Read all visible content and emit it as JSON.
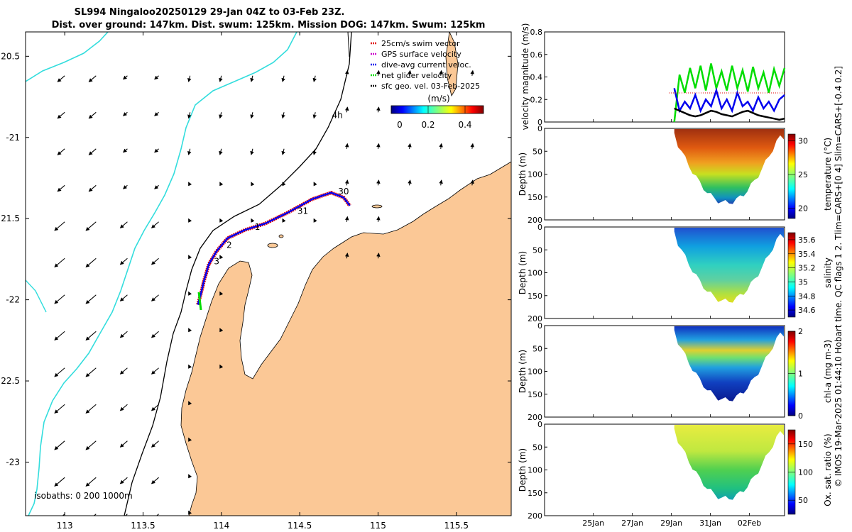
{
  "chart_data": [
    {
      "type": "map",
      "title_line1": "SL994 Ningaloo20250129 29-Jan 04Z to 03-Feb 23Z.",
      "title_line2": "Dist. over ground: 147km. Dist. swum: 125km. Mission DOG: 147km. Swum: 125km",
      "lon_ticks": [
        "113",
        "113.5",
        "114",
        "114.5",
        "115",
        "115.5"
      ],
      "lat_ticks": [
        "20.5",
        "-21",
        "21.5",
        "-22",
        "22.5",
        "-23"
      ],
      "xlim": [
        112.75,
        115.85
      ],
      "ylim": [
        -23.33,
        -20.35
      ],
      "legend": [
        {
          "label": "25cm/s swim vector",
          "color": "#e00000"
        },
        {
          "label": "GPS surface velocity",
          "color": "#cc00cc"
        },
        {
          "label": "dive-avg current veloc.",
          "color": "#0000ee"
        },
        {
          "label": "net glider velocity",
          "color": "#00dd00"
        },
        {
          "label": "sfc geo. vel. 03-Feb-2025",
          "color": "#000000"
        }
      ],
      "glider_track_lonlat": [
        [
          113.85,
          -22.03
        ],
        [
          113.87,
          -21.96
        ],
        [
          113.89,
          -21.88
        ],
        [
          113.92,
          -21.78
        ],
        [
          113.97,
          -21.7
        ],
        [
          114.04,
          -21.62
        ],
        [
          114.15,
          -21.57
        ],
        [
          114.28,
          -21.53
        ],
        [
          114.43,
          -21.46
        ],
        [
          114.58,
          -21.38
        ],
        [
          114.7,
          -21.34
        ],
        [
          114.78,
          -21.37
        ],
        [
          114.82,
          -21.42
        ]
      ],
      "day_labels": [
        {
          "label": "30",
          "lon": 114.78,
          "lat": -21.35
        },
        {
          "label": "31",
          "lon": 114.52,
          "lat": -21.47
        },
        {
          "label": "1",
          "lon": 114.23,
          "lat": -21.57
        },
        {
          "label": "2",
          "lon": 114.05,
          "lat": -21.68
        },
        {
          "label": "3",
          "lon": 113.97,
          "lat": -21.78
        },
        {
          "label": "4h",
          "lon": 114.74,
          "lat": -20.88
        }
      ],
      "colorbar": {
        "label": "(m/s)",
        "ticks": [
          "0",
          "0.2",
          "0.4"
        ],
        "range": [
          0,
          0.5
        ]
      },
      "isobaths_text": "isobaths: 0   200  1000m"
    },
    {
      "type": "line",
      "ylabel": "velocity magnitude (m/s)",
      "ylim": [
        0,
        0.8
      ],
      "yticks": [
        "0",
        "0.2",
        "0.4",
        "0.6",
        "0.8"
      ],
      "x_day_range": [
        22.5,
        34.8
      ],
      "series": [
        {
          "name": "net glider velocity",
          "color": "#00dd00",
          "values": [
            0,
            0.42,
            0.26,
            0.48,
            0.3,
            0.5,
            0.28,
            0.52,
            0.3,
            0.45,
            0.28,
            0.5,
            0.3,
            0.46,
            0.27,
            0.49,
            0.3,
            0.44,
            0.26,
            0.47,
            0.32,
            0.48
          ]
        },
        {
          "name": "dive-avg current veloc.",
          "color": "#0000ee",
          "values": [
            0.3,
            0.1,
            0.18,
            0.12,
            0.24,
            0.1,
            0.2,
            0.14,
            0.28,
            0.12,
            0.2,
            0.1,
            0.26,
            0.14,
            0.18,
            0.1,
            0.22,
            0.12,
            0.18,
            0.1,
            0.2,
            0.24
          ]
        },
        {
          "name": "sfc geo. vel.",
          "color": "#000000",
          "values": [
            0.12,
            0.1,
            0.08,
            0.06,
            0.05,
            0.06,
            0.08,
            0.1,
            0.09,
            0.07,
            0.06,
            0.05,
            0.07,
            0.09,
            0.1,
            0.08,
            0.06,
            0.05,
            0.04,
            0.03,
            0.02,
            0.03
          ]
        }
      ]
    },
    {
      "type": "heatmap",
      "ylabel": "Depth (m)",
      "yticks": [
        "0",
        "50",
        "100",
        "150",
        "200"
      ],
      "colorbar_label": "temperature (°C)",
      "colorbar_ticks": [
        "20",
        "25",
        "30"
      ],
      "crange": [
        18.5,
        31
      ]
    },
    {
      "type": "heatmap",
      "ylabel": "Depth (m)",
      "yticks": [
        "0",
        "50",
        "100",
        "150",
        "200"
      ],
      "colorbar_label": "salinity",
      "colorbar_ticks": [
        "34.6",
        "34.8",
        "35",
        "35.2",
        "35.4",
        "35.6"
      ],
      "crange": [
        34.5,
        35.7
      ]
    },
    {
      "type": "heatmap",
      "ylabel": "Depth (m)",
      "yticks": [
        "0",
        "50",
        "100",
        "150",
        "200"
      ],
      "colorbar_label": "chl-a (mg m-3)",
      "colorbar_ticks": [
        "0",
        "1",
        "2"
      ],
      "crange": [
        0,
        2
      ]
    },
    {
      "type": "heatmap",
      "ylabel": "Depth (m)",
      "yticks": [
        "0",
        "50",
        "100",
        "150",
        "200"
      ],
      "colorbar_label": "Ox. sat. ratio (%)",
      "colorbar_ticks": [
        "50",
        "100",
        "150"
      ],
      "crange": [
        25,
        175
      ],
      "xticks": [
        "25Jan",
        "27Jan",
        "29Jan",
        "31Jan",
        "02Feb"
      ]
    }
  ],
  "footer_text": "© IMOS 19-Mar-2025 01:44:10 Hobart time. QC flags 1 2. Tlim=CARS+[0 4] Slim=CARS+[-0.4 0.2]"
}
